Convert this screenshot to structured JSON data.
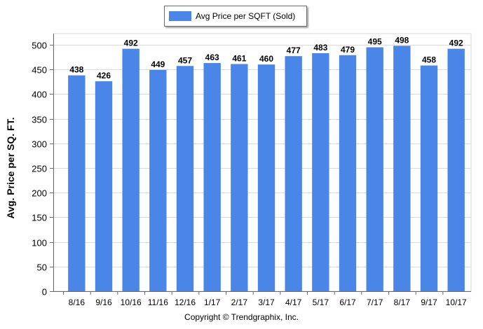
{
  "chart_data": {
    "type": "bar",
    "categories": [
      "8/16",
      "9/16",
      "10/16",
      "11/16",
      "12/16",
      "1/17",
      "2/17",
      "3/17",
      "4/17",
      "5/17",
      "6/17",
      "7/17",
      "8/17",
      "9/17",
      "10/17"
    ],
    "series": [
      {
        "name": "Avg Price per SQFT (Sold)",
        "color": "#4a86e8",
        "values": [
          438,
          426,
          492,
          449,
          457,
          463,
          461,
          460,
          477,
          483,
          479,
          495,
          498,
          458,
          492
        ]
      }
    ],
    "data_labels": [
      "438",
      "426",
      "492",
      "449",
      "457",
      "463",
      "461",
      "460",
      "477",
      "483",
      "479",
      "495",
      "498",
      "458",
      "492"
    ],
    "ylabel": "Avg. Price per SQ. FT.",
    "xlabel": "",
    "ylim": [
      0,
      500
    ],
    "yticks": [
      "0",
      "50",
      "100",
      "150",
      "200",
      "250",
      "300",
      "350",
      "400",
      "450",
      "500"
    ],
    "grid": true,
    "legend_position": "top-center"
  },
  "legend": {
    "label": "Avg Price per SQFT (Sold)",
    "icon": "legend-swatch"
  },
  "footer": {
    "copyright": "Copyright © Trendgraphix, Inc."
  }
}
